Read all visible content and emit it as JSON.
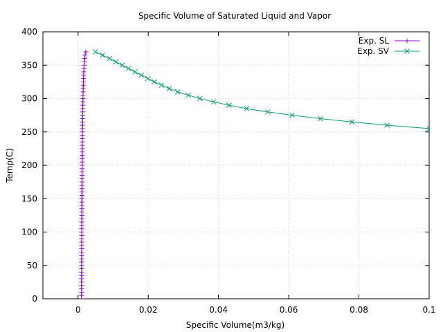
{
  "chart_data": {
    "type": "line",
    "title": "Specific Volume of Saturated Liquid and Vapor",
    "xlabel": "Specific Volume(m3/kg)",
    "ylabel": "Temp(C)",
    "xlim": [
      -0.01,
      0.1
    ],
    "ylim": [
      0,
      400
    ],
    "grid": true,
    "legend_position": "top-right",
    "x_ticks": [
      0,
      0.02,
      0.04,
      0.06,
      0.08,
      0.1
    ],
    "x_tick_labels": [
      "0",
      "0.02",
      "0.04",
      "0.06",
      "0.08",
      "0.1"
    ],
    "y_ticks": [
      0,
      50,
      100,
      150,
      200,
      250,
      300,
      350,
      400
    ],
    "y_tick_labels": [
      "0",
      "50",
      "100",
      "150",
      "200",
      "250",
      "300",
      "350",
      "400"
    ],
    "series": [
      {
        "name": "Exp. SL",
        "color": "#9400d3",
        "marker": "plus",
        "points": [
          [
            0.001,
            0.01
          ],
          [
            0.001,
            5
          ],
          [
            0.001,
            10
          ],
          [
            0.001001,
            15
          ],
          [
            0.001002,
            20
          ],
          [
            0.001003,
            25
          ],
          [
            0.001004,
            30
          ],
          [
            0.001006,
            35
          ],
          [
            0.001008,
            40
          ],
          [
            0.00101,
            45
          ],
          [
            0.001012,
            50
          ],
          [
            0.001015,
            55
          ],
          [
            0.001017,
            60
          ],
          [
            0.00102,
            65
          ],
          [
            0.001023,
            70
          ],
          [
            0.001026,
            75
          ],
          [
            0.001029,
            80
          ],
          [
            0.001032,
            85
          ],
          [
            0.001036,
            90
          ],
          [
            0.00104,
            95
          ],
          [
            0.001043,
            100
          ],
          [
            0.001047,
            105
          ],
          [
            0.001052,
            110
          ],
          [
            0.001056,
            115
          ],
          [
            0.00106,
            120
          ],
          [
            0.001065,
            125
          ],
          [
            0.00107,
            130
          ],
          [
            0.001075,
            135
          ],
          [
            0.00108,
            140
          ],
          [
            0.001085,
            145
          ],
          [
            0.001091,
            150
          ],
          [
            0.001096,
            155
          ],
          [
            0.001102,
            160
          ],
          [
            0.001108,
            165
          ],
          [
            0.001114,
            170
          ],
          [
            0.001121,
            175
          ],
          [
            0.001127,
            180
          ],
          [
            0.001134,
            185
          ],
          [
            0.001141,
            190
          ],
          [
            0.001149,
            195
          ],
          [
            0.001157,
            200
          ],
          [
            0.001164,
            205
          ],
          [
            0.001173,
            210
          ],
          [
            0.001181,
            215
          ],
          [
            0.00119,
            220
          ],
          [
            0.001199,
            225
          ],
          [
            0.001209,
            230
          ],
          [
            0.001219,
            235
          ],
          [
            0.001229,
            240
          ],
          [
            0.00124,
            245
          ],
          [
            0.001252,
            250
          ],
          [
            0.001263,
            255
          ],
          [
            0.001276,
            260
          ],
          [
            0.001289,
            265
          ],
          [
            0.001303,
            270
          ],
          [
            0.001317,
            275
          ],
          [
            0.001333,
            280
          ],
          [
            0.001349,
            285
          ],
          [
            0.001366,
            290
          ],
          [
            0.001384,
            295
          ],
          [
            0.001404,
            300
          ],
          [
            0.001425,
            305
          ],
          [
            0.001447,
            310
          ],
          [
            0.001472,
            315
          ],
          [
            0.001499,
            320
          ],
          [
            0.001528,
            325
          ],
          [
            0.001561,
            330
          ],
          [
            0.001597,
            335
          ],
          [
            0.001638,
            340
          ],
          [
            0.001685,
            345
          ],
          [
            0.00174,
            350
          ],
          [
            0.001807,
            355
          ],
          [
            0.001893,
            360
          ],
          [
            0.002013,
            365
          ],
          [
            0.002213,
            370
          ]
        ]
      },
      {
        "name": "Exp. SV",
        "color": "#009e73",
        "marker": "cross",
        "points": [
          [
            0.00495,
            370
          ],
          [
            0.00697,
            365
          ],
          [
            0.00894,
            360
          ],
          [
            0.0108,
            355
          ],
          [
            0.01256,
            350
          ],
          [
            0.01433,
            345
          ],
          [
            0.0162,
            340
          ],
          [
            0.01803,
            335
          ],
          [
            0.01988,
            330
          ],
          [
            0.0217,
            325
          ],
          [
            0.0238,
            320
          ],
          [
            0.026,
            315
          ],
          [
            0.0284,
            310
          ],
          [
            0.0314,
            305
          ],
          [
            0.0347,
            300
          ],
          [
            0.0386,
            295
          ],
          [
            0.043,
            290
          ],
          [
            0.048,
            285
          ],
          [
            0.054,
            280
          ],
          [
            0.061,
            275
          ],
          [
            0.069,
            270
          ],
          [
            0.078,
            265
          ],
          [
            0.088,
            260
          ],
          [
            0.1,
            255
          ]
        ]
      }
    ]
  }
}
